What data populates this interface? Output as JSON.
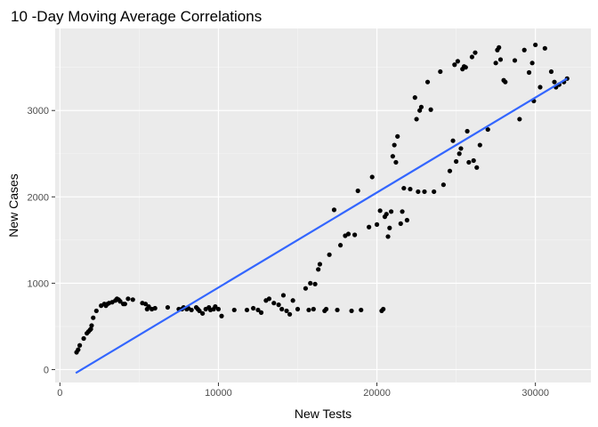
{
  "chart_data": {
    "type": "scatter",
    "title": "10 -Day Moving Average Correlations",
    "xlabel": "New Tests",
    "ylabel": "New Cases",
    "xlim": [
      -300,
      33500
    ],
    "ylim": [
      -150,
      3950
    ],
    "x_ticks": [
      0,
      10000,
      20000,
      30000
    ],
    "x_tick_labels": [
      "0",
      "10000",
      "20000",
      "30000"
    ],
    "y_ticks": [
      0,
      1000,
      2000,
      3000
    ],
    "y_tick_labels": [
      "0",
      "1000",
      "2000",
      "3000"
    ],
    "grid": true,
    "background": "#ebebeb",
    "point_color": "#000000",
    "fit_line_color": "#3366ff",
    "fit_line": {
      "x": [
        1000,
        32000
      ],
      "y": [
        -40,
        3370
      ]
    },
    "points": [
      [
        1050,
        200
      ],
      [
        1150,
        230
      ],
      [
        1250,
        280
      ],
      [
        1500,
        360
      ],
      [
        1700,
        420
      ],
      [
        1800,
        440
      ],
      [
        1900,
        460
      ],
      [
        1950,
        470
      ],
      [
        2000,
        510
      ],
      [
        2100,
        600
      ],
      [
        2300,
        680
      ],
      [
        2600,
        740
      ],
      [
        2800,
        760
      ],
      [
        2900,
        740
      ],
      [
        3000,
        760
      ],
      [
        3100,
        770
      ],
      [
        3300,
        780
      ],
      [
        3500,
        800
      ],
      [
        3600,
        820
      ],
      [
        3700,
        810
      ],
      [
        3800,
        790
      ],
      [
        4000,
        760
      ],
      [
        4100,
        760
      ],
      [
        4300,
        820
      ],
      [
        4600,
        810
      ],
      [
        5200,
        770
      ],
      [
        5400,
        760
      ],
      [
        5500,
        700
      ],
      [
        5600,
        730
      ],
      [
        5800,
        700
      ],
      [
        6000,
        710
      ],
      [
        6800,
        720
      ],
      [
        7500,
        700
      ],
      [
        7700,
        700
      ],
      [
        7800,
        720
      ],
      [
        8000,
        700
      ],
      [
        8100,
        710
      ],
      [
        8300,
        690
      ],
      [
        8600,
        720
      ],
      [
        8700,
        700
      ],
      [
        8800,
        680
      ],
      [
        9000,
        650
      ],
      [
        9200,
        700
      ],
      [
        9400,
        720
      ],
      [
        9500,
        690
      ],
      [
        9700,
        700
      ],
      [
        9800,
        730
      ],
      [
        10000,
        700
      ],
      [
        10200,
        620
      ],
      [
        11000,
        690
      ],
      [
        11800,
        690
      ],
      [
        12200,
        710
      ],
      [
        12500,
        690
      ],
      [
        12700,
        660
      ],
      [
        13000,
        800
      ],
      [
        13200,
        820
      ],
      [
        13500,
        770
      ],
      [
        13800,
        750
      ],
      [
        14000,
        700
      ],
      [
        14100,
        860
      ],
      [
        14300,
        680
      ],
      [
        14500,
        640
      ],
      [
        14700,
        800
      ],
      [
        15000,
        700
      ],
      [
        15500,
        940
      ],
      [
        15700,
        690
      ],
      [
        15800,
        1000
      ],
      [
        16000,
        700
      ],
      [
        16100,
        990
      ],
      [
        16300,
        1160
      ],
      [
        16400,
        1220
      ],
      [
        16700,
        680
      ],
      [
        16800,
        700
      ],
      [
        17000,
        1330
      ],
      [
        17300,
        1850
      ],
      [
        17500,
        690
      ],
      [
        17700,
        1440
      ],
      [
        18000,
        1550
      ],
      [
        18200,
        1570
      ],
      [
        18400,
        680
      ],
      [
        18600,
        1560
      ],
      [
        18800,
        2070
      ],
      [
        19000,
        690
      ],
      [
        19500,
        1650
      ],
      [
        19700,
        2230
      ],
      [
        20000,
        1680
      ],
      [
        20200,
        1840
      ],
      [
        20300,
        680
      ],
      [
        20400,
        700
      ],
      [
        20500,
        1770
      ],
      [
        20600,
        1800
      ],
      [
        20700,
        1540
      ],
      [
        20800,
        1640
      ],
      [
        20900,
        1830
      ],
      [
        21000,
        2470
      ],
      [
        21100,
        2600
      ],
      [
        21200,
        2400
      ],
      [
        21300,
        2700
      ],
      [
        21500,
        1690
      ],
      [
        21600,
        1830
      ],
      [
        21700,
        2100
      ],
      [
        21900,
        1730
      ],
      [
        22100,
        2090
      ],
      [
        22400,
        3150
      ],
      [
        22500,
        2900
      ],
      [
        22600,
        2060
      ],
      [
        22700,
        3000
      ],
      [
        22800,
        3040
      ],
      [
        23000,
        2060
      ],
      [
        23200,
        3330
      ],
      [
        23400,
        3010
      ],
      [
        23600,
        2060
      ],
      [
        24000,
        3450
      ],
      [
        24200,
        2140
      ],
      [
        24600,
        2300
      ],
      [
        24800,
        2650
      ],
      [
        24900,
        3530
      ],
      [
        25000,
        2410
      ],
      [
        25100,
        3570
      ],
      [
        25200,
        2500
      ],
      [
        25300,
        2560
      ],
      [
        25400,
        3480
      ],
      [
        25500,
        3510
      ],
      [
        25600,
        3500
      ],
      [
        25700,
        2760
      ],
      [
        25800,
        2400
      ],
      [
        26000,
        3620
      ],
      [
        26100,
        2420
      ],
      [
        26200,
        3670
      ],
      [
        26300,
        2340
      ],
      [
        26500,
        2600
      ],
      [
        27000,
        2780
      ],
      [
        27500,
        3550
      ],
      [
        27600,
        3700
      ],
      [
        27700,
        3730
      ],
      [
        27800,
        3590
      ],
      [
        28000,
        3350
      ],
      [
        28100,
        3330
      ],
      [
        28700,
        3580
      ],
      [
        29000,
        2900
      ],
      [
        29300,
        3700
      ],
      [
        29600,
        3440
      ],
      [
        29800,
        3550
      ],
      [
        29900,
        3110
      ],
      [
        30000,
        3760
      ],
      [
        30300,
        3270
      ],
      [
        30600,
        3720
      ],
      [
        31000,
        3450
      ],
      [
        31200,
        3330
      ],
      [
        31300,
        3270
      ],
      [
        31500,
        3300
      ],
      [
        31800,
        3330
      ],
      [
        32000,
        3370
      ]
    ]
  }
}
